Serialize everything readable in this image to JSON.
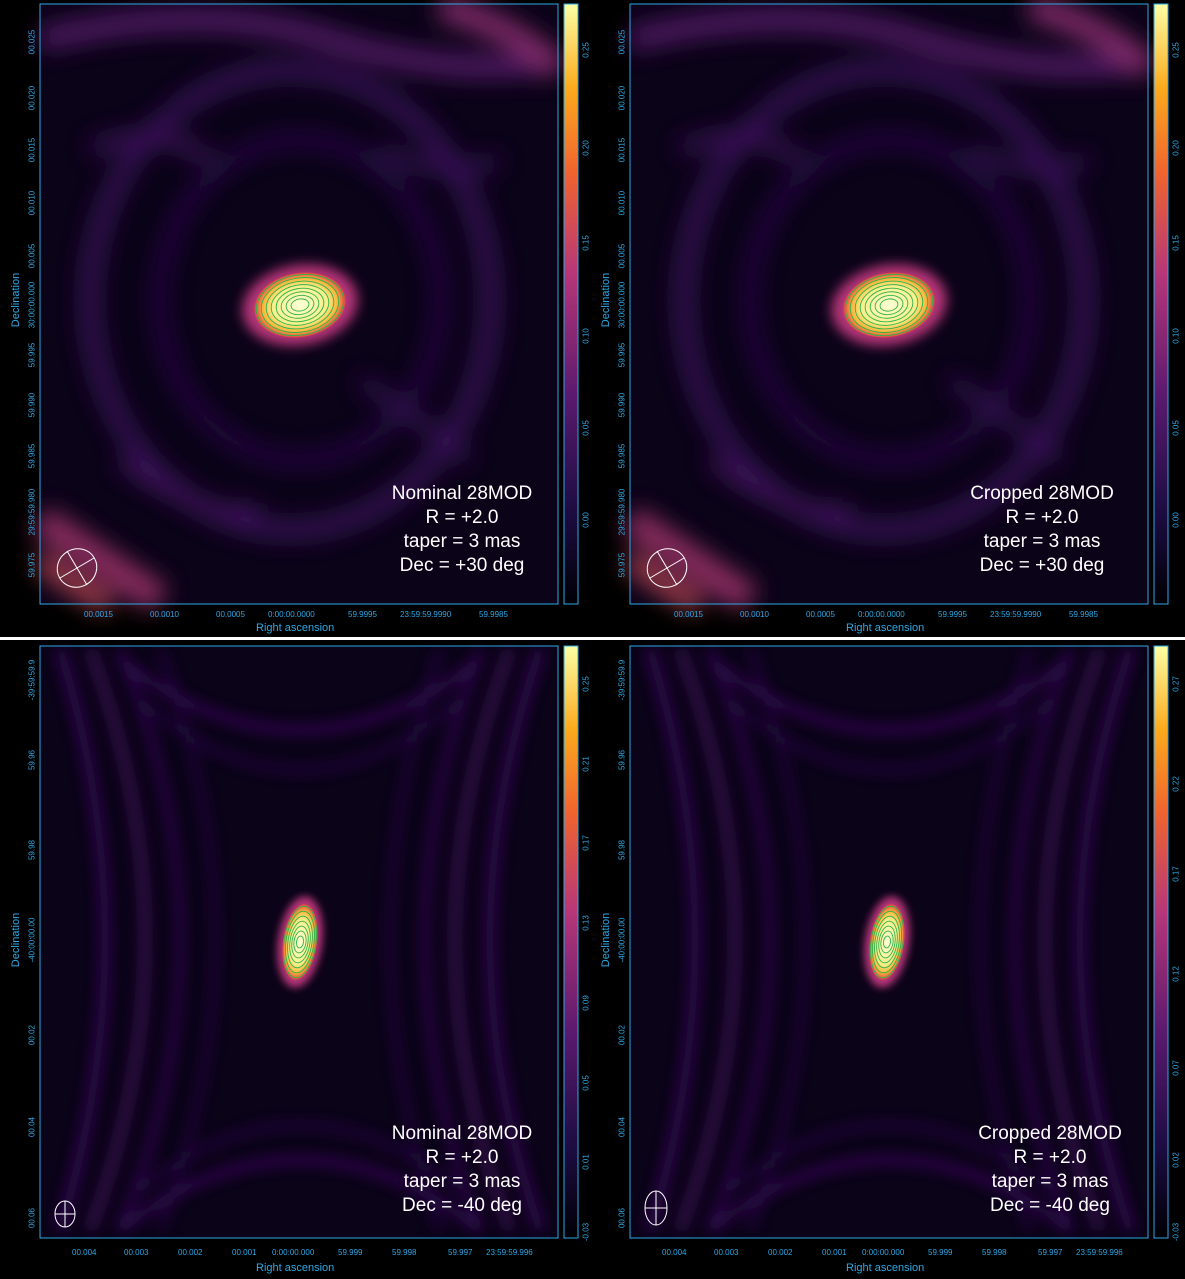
{
  "colors": {
    "axis": "#2ea8e6",
    "background": "#000000"
  },
  "panels": [
    {
      "id": "p1",
      "caption": [
        "Nominal 28MOD",
        "R = +2.0",
        "taper = 3 mas",
        "Dec = +30 deg"
      ],
      "xlabel": "Right ascension",
      "ylabel": "Declination",
      "xticks": [
        "00.0015",
        "00.0010",
        "00.0005",
        "0:00:00.0000",
        "59.9995",
        "23:59:59.9990",
        "59.9985"
      ],
      "yticks": [
        "00.025",
        "00.020",
        "00.015",
        "00.010",
        "00.005",
        "30:00:00.000",
        "59.995",
        "59.990",
        "59.985",
        "29:59:59.980",
        "59.975"
      ],
      "cbticks": [
        "0.25",
        "0.20",
        "0.15",
        "0.10",
        "0.05",
        "0.00"
      ]
    },
    {
      "id": "p2",
      "caption": [
        "Cropped 28MOD",
        "R = +2.0",
        "taper = 3 mas",
        "Dec = +30 deg"
      ],
      "xlabel": "Right ascension",
      "ylabel": "Declination",
      "xticks": [
        "00.0015",
        "00.0010",
        "00.0005",
        "0:00:00.0000",
        "59.9995",
        "23:59:59.9990",
        "59.9985"
      ],
      "yticks": [
        "00.025",
        "00.020",
        "00.015",
        "00.010",
        "00.005",
        "30:00:00.000",
        "59.995",
        "59.990",
        "59.985",
        "29:59:59.980",
        "59.975"
      ],
      "cbticks": [
        "0.25",
        "0.20",
        "0.15",
        "0.10",
        "0.05",
        "0.00"
      ]
    },
    {
      "id": "p3",
      "caption": [
        "Nominal 28MOD",
        "R = +2.0",
        "taper = 3 mas",
        "Dec = -40 deg"
      ],
      "xlabel": "Right ascension",
      "ylabel": "Declination",
      "xticks": [
        "00.004",
        "00.003",
        "00.002",
        "00.001",
        "0:00:00.000",
        "59.999",
        "59.998",
        "59.997",
        "23:59:59.996"
      ],
      "yticks": [
        "-39:59:59.9",
        "59.96",
        "59.98",
        "-40:00:00.00",
        "00.02",
        "00.04",
        "00.06"
      ],
      "cbticks": [
        "0.25",
        "0.21",
        "0.17",
        "0.13",
        "0.09",
        "0.05",
        "0.01",
        "-0.03"
      ]
    },
    {
      "id": "p4",
      "caption": [
        "Cropped 28MOD",
        "R = +2.0",
        "taper = 3 mas",
        "Dec = -40 deg"
      ],
      "xlabel": "Right ascension",
      "ylabel": "Declination",
      "xticks": [
        "00.004",
        "00.003",
        "00.002",
        "00.001",
        "0:00:00.000",
        "59.999",
        "59.998",
        "59.997",
        "23:59:59.996"
      ],
      "yticks": [
        "-39:59:59.9",
        "59.96",
        "59.98",
        "-40:00:00.00",
        "00.02",
        "00.04",
        "00.06"
      ],
      "cbticks": [
        "0.27",
        "0.22",
        "0.17",
        "0.12",
        "0.07",
        "0.02",
        "-0.03"
      ]
    }
  ]
}
